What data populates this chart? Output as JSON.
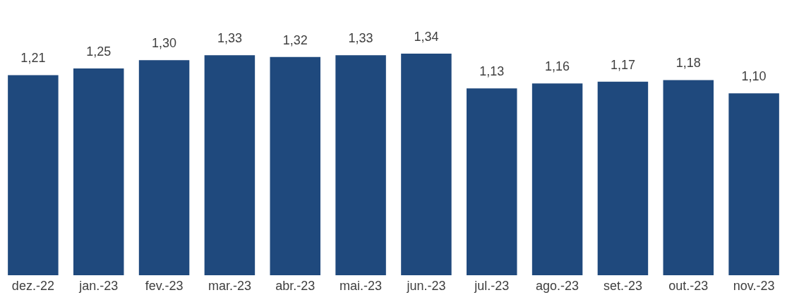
{
  "chart_data": {
    "type": "bar",
    "categories": [
      "dez.-22",
      "jan.-23",
      "fev.-23",
      "mar.-23",
      "abr.-23",
      "mai.-23",
      "jun.-23",
      "jul.-23",
      "ago.-23",
      "set.-23",
      "out.-23",
      "nov.-23"
    ],
    "values": [
      1.21,
      1.25,
      1.3,
      1.33,
      1.32,
      1.33,
      1.34,
      1.13,
      1.16,
      1.17,
      1.18,
      1.1
    ],
    "value_labels": [
      "1,21",
      "1,25",
      "1,30",
      "1,33",
      "1,32",
      "1,33",
      "1,34",
      "1,13",
      "1,16",
      "1,17",
      "1,18",
      "1,10"
    ],
    "color": "#1f497d",
    "tick_labels": "x"
  }
}
